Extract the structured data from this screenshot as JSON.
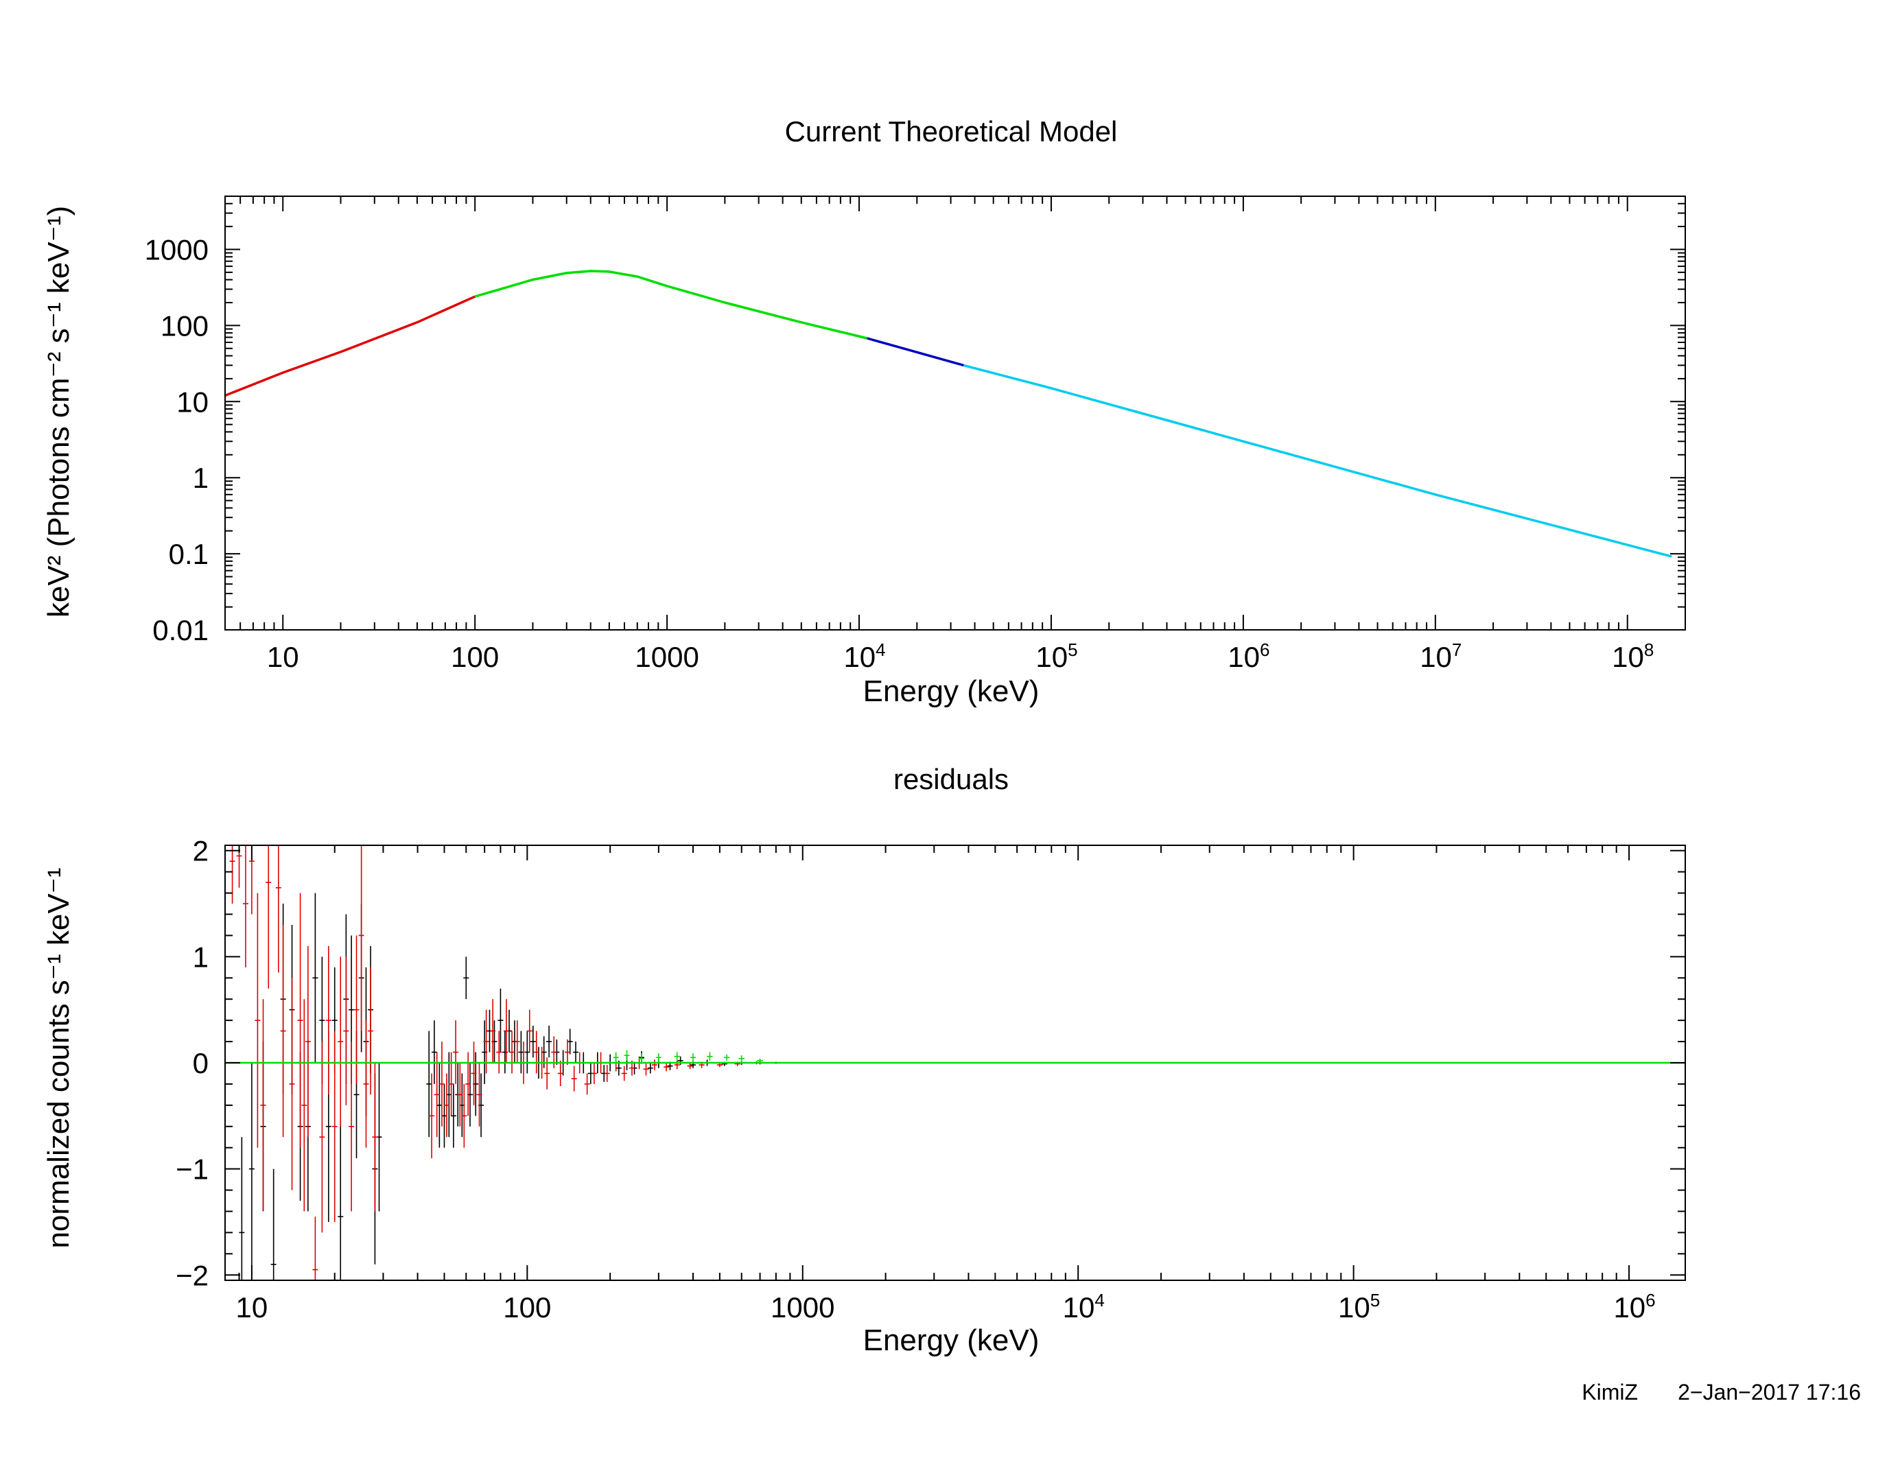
{
  "chart_data": [
    {
      "type": "line",
      "title": "Current Theoretical Model",
      "xlabel": "Energy (keV)",
      "ylabel": "keV² (Photons cm⁻² s⁻¹ keV⁻¹)",
      "x_scale": "log",
      "y_scale": "log",
      "xlim": [
        5,
        200000000.0
      ],
      "ylim": [
        0.01,
        5000
      ],
      "grid": false,
      "x_ticks": [
        {
          "value": 10,
          "base": "10",
          "exp": ""
        },
        {
          "value": 100,
          "base": "100",
          "exp": ""
        },
        {
          "value": 1000,
          "base": "1000",
          "exp": ""
        },
        {
          "value": 10000,
          "base": "10",
          "exp": "4"
        },
        {
          "value": 100000,
          "base": "10",
          "exp": "5"
        },
        {
          "value": 1000000,
          "base": "10",
          "exp": "6"
        },
        {
          "value": 10000000,
          "base": "10",
          "exp": "7"
        },
        {
          "value": 100000000,
          "base": "10",
          "exp": "8"
        }
      ],
      "y_ticks": [
        {
          "value": 0.01,
          "label": "0.01"
        },
        {
          "value": 0.1,
          "label": "0.1"
        },
        {
          "value": 1,
          "label": "1"
        },
        {
          "value": 10,
          "label": "10"
        },
        {
          "value": 100,
          "label": "100"
        },
        {
          "value": 1000,
          "label": "1000"
        }
      ],
      "series": [
        {
          "color": "#e00000",
          "x": [
            5,
            10,
            20,
            50,
            100
          ],
          "y": [
            12,
            24,
            45,
            110,
            240
          ]
        },
        {
          "color": "#00dd00",
          "x": [
            100,
            200,
            300,
            400,
            500,
            700,
            1000,
            2000,
            5000,
            11000
          ],
          "y": [
            240,
            400,
            490,
            520,
            510,
            440,
            330,
            200,
            110,
            68
          ]
        },
        {
          "color": "#0000c0",
          "x": [
            11000,
            35000
          ],
          "y": [
            68,
            30
          ]
        },
        {
          "color": "#00ccee",
          "x": [
            35000,
            100000,
            1000000,
            10000000,
            170000000
          ],
          "y": [
            30,
            15,
            3,
            0.6,
            0.092
          ]
        }
      ]
    },
    {
      "type": "scatter",
      "title": "residuals",
      "xlabel": "Energy (keV)",
      "ylabel": "normalized counts s⁻¹ keV⁻¹",
      "x_scale": "log",
      "y_scale": "linear",
      "xlim": [
        8,
        1600000
      ],
      "ylim": [
        -2.05,
        2.05
      ],
      "grid": false,
      "x_ticks": [
        {
          "value": 10,
          "base": "10",
          "exp": ""
        },
        {
          "value": 100,
          "base": "100",
          "exp": ""
        },
        {
          "value": 1000,
          "base": "1000",
          "exp": ""
        },
        {
          "value": 10000,
          "base": "10",
          "exp": "4"
        },
        {
          "value": 100000,
          "base": "10",
          "exp": "5"
        },
        {
          "value": 1000000,
          "base": "10",
          "exp": "6"
        }
      ],
      "y_ticks": [
        {
          "value": 2,
          "label": "2"
        },
        {
          "value": 1,
          "label": "1"
        },
        {
          "value": 0,
          "label": "0"
        },
        {
          "value": -1,
          "label": "−1"
        },
        {
          "value": -2,
          "label": "−2"
        }
      ],
      "zero_line": {
        "y": 0,
        "color": "#00dd00"
      },
      "series": [
        {
          "color": "#000000",
          "points": [
            [
              9.2,
              -1.6,
              0.9
            ],
            [
              10,
              -1.0,
              1.0
            ],
            [
              11,
              -0.6,
              0.8
            ],
            [
              12,
              -1.9,
              0.9
            ],
            [
              13,
              0.6,
              0.9
            ],
            [
              14,
              0.5,
              0.8
            ],
            [
              15,
              -0.6,
              0.7
            ],
            [
              16,
              -0.6,
              0.8
            ],
            [
              17,
              0.8,
              0.8
            ],
            [
              18,
              0.4,
              0.6
            ],
            [
              19,
              -0.6,
              0.9
            ],
            [
              20,
              0.4,
              0.5
            ],
            [
              21,
              -1.45,
              0.9
            ],
            [
              22,
              0.6,
              0.8
            ],
            [
              23,
              0.5,
              0.7
            ],
            [
              24,
              -0.3,
              0.6
            ],
            [
              25,
              0.8,
              0.7
            ],
            [
              26,
              0.2,
              0.7
            ],
            [
              27,
              0.5,
              0.6
            ],
            [
              28,
              -1.0,
              0.9
            ],
            [
              29,
              -0.7,
              0.7
            ],
            [
              44,
              -0.2,
              0.5
            ],
            [
              46,
              0.1,
              0.3
            ],
            [
              48,
              -0.4,
              0.4
            ],
            [
              50,
              -0.5,
              0.3
            ],
            [
              52,
              -0.3,
              0.4
            ],
            [
              54,
              -0.5,
              0.3
            ],
            [
              56,
              -0.3,
              0.3
            ],
            [
              58,
              -0.4,
              0.3
            ],
            [
              60,
              0.8,
              0.2
            ],
            [
              62,
              -0.3,
              0.3
            ],
            [
              65,
              -0.2,
              0.3
            ],
            [
              68,
              -0.4,
              0.3
            ],
            [
              70,
              0.1,
              0.3
            ],
            [
              73,
              0.3,
              0.2
            ],
            [
              76,
              0.2,
              0.2
            ],
            [
              80,
              0.4,
              0.3
            ],
            [
              83,
              0.1,
              0.2
            ],
            [
              86,
              0.3,
              0.2
            ],
            [
              90,
              0.2,
              0.2
            ],
            [
              95,
              0.1,
              0.2
            ],
            [
              100,
              0.1,
              0.2
            ],
            [
              105,
              0.2,
              0.15
            ],
            [
              110,
              0.0,
              0.15
            ],
            [
              115,
              0.1,
              0.15
            ],
            [
              120,
              0.2,
              0.15
            ],
            [
              128,
              0.1,
              0.12
            ],
            [
              135,
              0.0,
              0.12
            ],
            [
              143,
              0.2,
              0.12
            ],
            [
              150,
              0.1,
              0.1
            ],
            [
              160,
              0.0,
              0.1
            ],
            [
              170,
              -0.1,
              0.1
            ],
            [
              180,
              0.0,
              0.1
            ],
            [
              190,
              -0.1,
              0.08
            ],
            [
              200,
              0.0,
              0.08
            ],
            [
              215,
              -0.05,
              0.07
            ],
            [
              230,
              0.0,
              0.07
            ],
            [
              245,
              -0.05,
              0.06
            ],
            [
              260,
              0.05,
              0.06
            ],
            [
              280,
              -0.05,
              0.05
            ],
            [
              300,
              0.0,
              0.05
            ],
            [
              330,
              -0.03,
              0.04
            ],
            [
              360,
              0.02,
              0.04
            ],
            [
              400,
              -0.02,
              0.03
            ],
            [
              450,
              0.0,
              0.03
            ],
            [
              520,
              -0.01,
              0.02
            ],
            [
              600,
              0.0,
              0.02
            ],
            [
              700,
              0.0,
              0.015
            ],
            [
              800,
              0.0,
              0.01
            ]
          ]
        },
        {
          "color": "#e00000",
          "points": [
            [
              8.5,
              1.9,
              0.4
            ],
            [
              9,
              1.95,
              0.3
            ],
            [
              9.5,
              1.5,
              0.6
            ],
            [
              10,
              1.9,
              0.5
            ],
            [
              10.5,
              0.4,
              1.2
            ],
            [
              11,
              -0.4,
              1.0
            ],
            [
              11.5,
              1.7,
              1.0
            ],
            [
              12.5,
              1.65,
              0.8
            ],
            [
              13,
              0.3,
              1.0
            ],
            [
              14,
              -0.2,
              1.0
            ],
            [
              15,
              0.4,
              1.2
            ],
            [
              15.5,
              -0.4,
              1.0
            ],
            [
              16,
              0.2,
              0.9
            ],
            [
              17,
              -1.95,
              0.5
            ],
            [
              18,
              -0.7,
              0.9
            ],
            [
              19,
              0.4,
              0.7
            ],
            [
              20,
              -0.6,
              0.9
            ],
            [
              21,
              0.2,
              0.8
            ],
            [
              22,
              0.3,
              0.7
            ],
            [
              23,
              -0.6,
              0.8
            ],
            [
              24,
              0.5,
              0.7
            ],
            [
              25,
              1.2,
              0.9
            ],
            [
              26,
              -0.2,
              0.6
            ],
            [
              27,
              0.3,
              0.6
            ],
            [
              28,
              -0.7,
              0.7
            ],
            [
              45,
              -0.5,
              0.4
            ],
            [
              47,
              -0.3,
              0.4
            ],
            [
              49,
              -0.2,
              0.4
            ],
            [
              51,
              -0.4,
              0.3
            ],
            [
              53,
              -0.2,
              0.3
            ],
            [
              55,
              0.1,
              0.3
            ],
            [
              57,
              -0.3,
              0.3
            ],
            [
              59,
              -0.5,
              0.3
            ],
            [
              61,
              -0.2,
              0.3
            ],
            [
              64,
              -0.1,
              0.3
            ],
            [
              67,
              -0.3,
              0.3
            ],
            [
              71,
              0.2,
              0.3
            ],
            [
              75,
              0.3,
              0.3
            ],
            [
              79,
              0.1,
              0.2
            ],
            [
              84,
              0.3,
              0.3
            ],
            [
              88,
              0.1,
              0.2
            ],
            [
              92,
              0.2,
              0.2
            ],
            [
              97,
              0.0,
              0.2
            ],
            [
              102,
              0.3,
              0.2
            ],
            [
              108,
              0.1,
              0.2
            ],
            [
              113,
              0.0,
              0.15
            ],
            [
              118,
              -0.1,
              0.15
            ],
            [
              125,
              0.1,
              0.15
            ],
            [
              132,
              -0.1,
              0.12
            ],
            [
              140,
              0.1,
              0.12
            ],
            [
              148,
              -0.15,
              0.12
            ],
            [
              155,
              0.0,
              0.1
            ],
            [
              165,
              -0.2,
              0.1
            ],
            [
              175,
              -0.1,
              0.1
            ],
            [
              185,
              0.0,
              0.1
            ],
            [
              195,
              -0.1,
              0.08
            ],
            [
              210,
              0.0,
              0.08
            ],
            [
              225,
              -0.1,
              0.07
            ],
            [
              240,
              -0.05,
              0.07
            ],
            [
              255,
              0.0,
              0.06
            ],
            [
              270,
              -0.06,
              0.06
            ],
            [
              290,
              -0.02,
              0.05
            ],
            [
              320,
              -0.04,
              0.04
            ],
            [
              350,
              -0.02,
              0.04
            ],
            [
              390,
              -0.03,
              0.03
            ],
            [
              430,
              -0.02,
              0.03
            ],
            [
              500,
              -0.02,
              0.02
            ],
            [
              580,
              -0.01,
              0.02
            ],
            [
              680,
              0.0,
              0.015
            ]
          ]
        },
        {
          "color": "#00dd00",
          "points": [
            [
              210,
              0.05,
              0.05
            ],
            [
              230,
              0.07,
              0.05
            ],
            [
              260,
              0.04,
              0.05
            ],
            [
              300,
              0.05,
              0.04
            ],
            [
              350,
              0.06,
              0.04
            ],
            [
              400,
              0.05,
              0.04
            ],
            [
              460,
              0.06,
              0.04
            ],
            [
              530,
              0.05,
              0.03
            ],
            [
              600,
              0.04,
              0.03
            ],
            [
              700,
              0.02,
              0.02
            ]
          ]
        }
      ]
    }
  ],
  "footer": {
    "author": "KimiZ",
    "date": "2−Jan−2017 17:16"
  }
}
